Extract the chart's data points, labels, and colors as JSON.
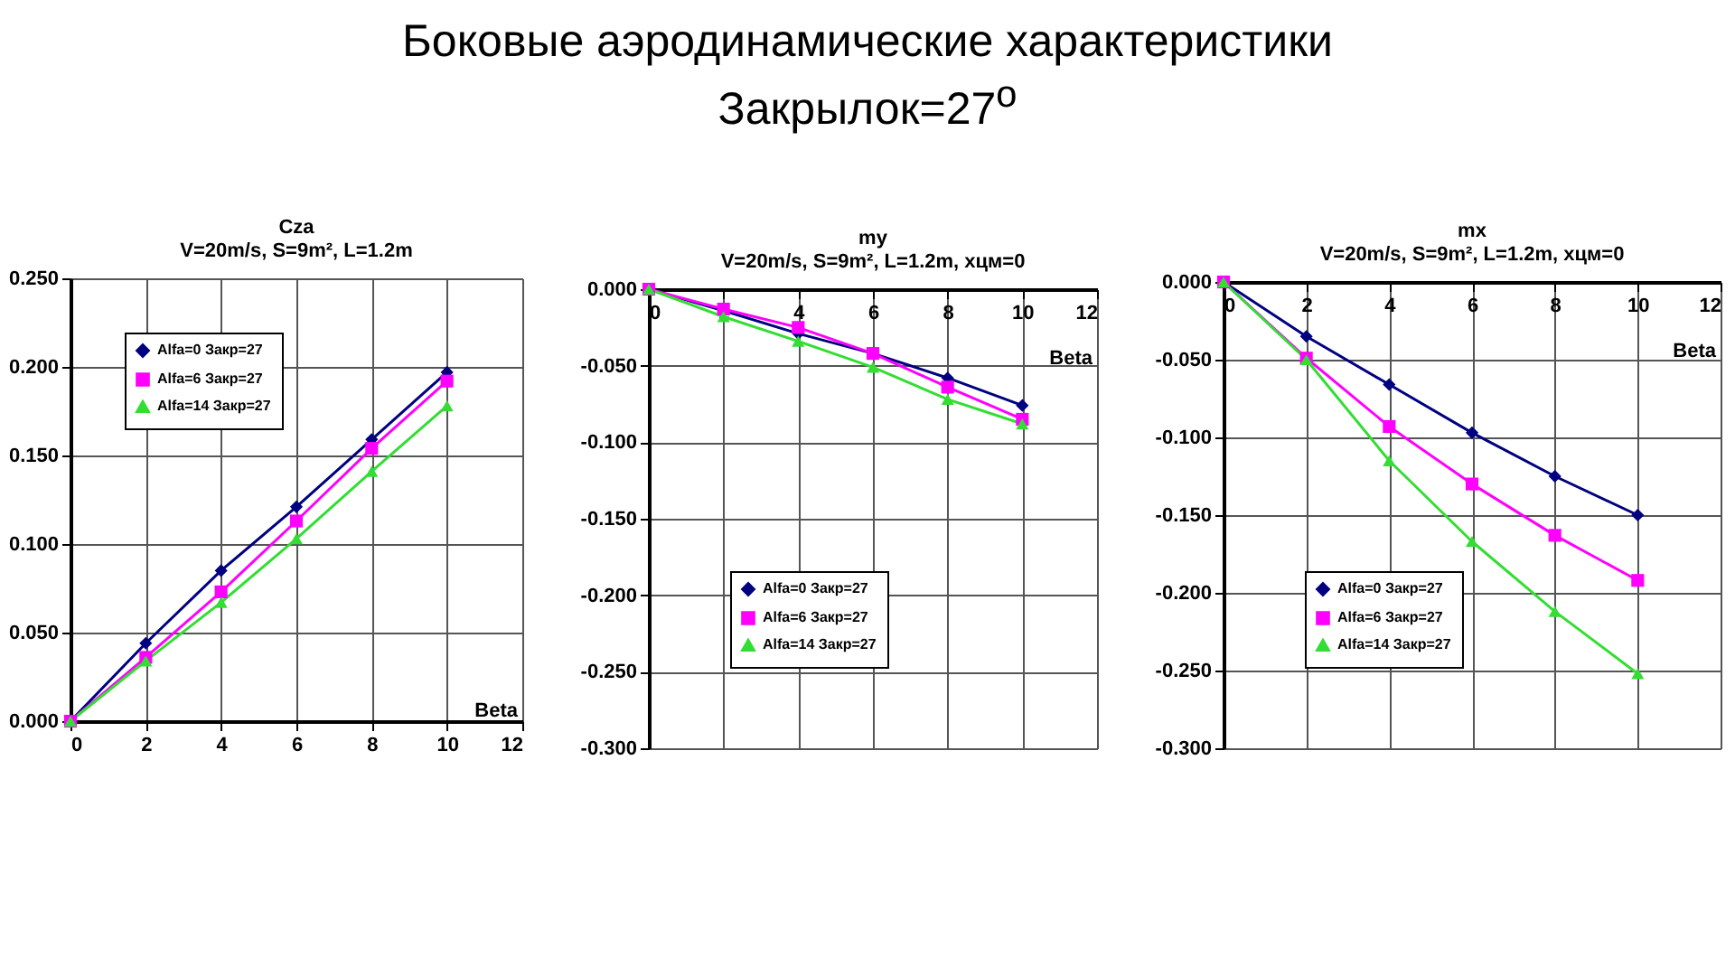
{
  "chart_data": [
    {
      "type": "line",
      "title": "Cza",
      "subtitle": "V=20m/s, S=9m², L=1.2m",
      "xlabel": "Beta",
      "annotations": [
        "Боковые аэродинамические характеристики",
        "Закрылок=27$^{o}$"
      ],
      "x": [
        0,
        2,
        4,
        6,
        8,
        10
      ],
      "xlim": [
        0,
        12
      ],
      "xticks": [
        0,
        2,
        4,
        6,
        8,
        10,
        12
      ],
      "ylim": [
        0,
        0.25
      ],
      "yticks": [
        {
          "value": 0,
          "label": "0.000"
        },
        {
          "value": 0.05,
          "label": "0.050"
        },
        {
          "value": 0.1,
          "label": "0.100"
        },
        {
          "value": 0.15,
          "label": "0.150"
        },
        {
          "value": 0.2,
          "label": "0.200"
        },
        {
          "value": 0.25,
          "label": "0.250"
        }
      ],
      "grid": true,
      "legend": "top left",
      "series": [
        {
          "name": "Alfa=0 Закр=27",
          "color": "#000080",
          "marker": "diamond",
          "values": [
            0,
            0.044,
            0.085,
            0.121,
            0.159,
            0.197
          ]
        },
        {
          "name": "Alfa=6 Закр=27",
          "color": "#ff00ff",
          "marker": "square",
          "values": [
            0,
            0.036,
            0.073,
            0.113,
            0.154,
            0.192
          ]
        },
        {
          "name": "Alfa=14 Закр=27",
          "color": "#33dd33",
          "marker": "triangle",
          "values": [
            0,
            0.034,
            0.067,
            0.103,
            0.141,
            0.178
          ]
        }
      ]
    },
    {
      "type": "line",
      "title": "my",
      "subtitle": "V=20m/s, S=9m², L=1.2m, хцм=0",
      "xlabel": "Beta",
      "x": [
        0,
        2,
        4,
        6,
        8,
        10
      ],
      "xlim": [
        0,
        12
      ],
      "xticks": [
        0,
        2,
        4,
        6,
        8,
        10,
        12
      ],
      "ylim": [
        -0.3,
        0
      ],
      "yticks": [
        {
          "value": -0.3,
          "label": "-0.300"
        },
        {
          "value": -0.25,
          "label": "-0.250"
        },
        {
          "value": -0.2,
          "label": "-0.200"
        },
        {
          "value": -0.15,
          "label": "-0.150"
        },
        {
          "value": -0.1,
          "label": "-0.100"
        },
        {
          "value": -0.05,
          "label": "-0.050"
        },
        {
          "value": 0,
          "label": "0.000"
        }
      ],
      "grid": true,
      "legend": "bottom left",
      "series": [
        {
          "name": "Alfa=0 Закр=27",
          "color": "#000080",
          "marker": "diamond",
          "values": [
            0,
            -0.014,
            -0.029,
            -0.042,
            -0.058,
            -0.076
          ]
        },
        {
          "name": "Alfa=6 Закр=27",
          "color": "#ff00ff",
          "marker": "square",
          "values": [
            0,
            -0.013,
            -0.025,
            -0.042,
            -0.064,
            -0.085
          ]
        },
        {
          "name": "Alfa=14 Закр=27",
          "color": "#33dd33",
          "marker": "triangle",
          "values": [
            0,
            -0.018,
            -0.034,
            -0.051,
            -0.072,
            -0.088
          ]
        }
      ]
    },
    {
      "type": "line",
      "title": "mx",
      "subtitle": "V=20m/s, S=9m², L=1.2m, хцм=0",
      "xlabel": "Beta",
      "x": [
        0,
        2,
        4,
        6,
        8,
        10
      ],
      "xlim": [
        0,
        12
      ],
      "xticks": [
        0,
        2,
        4,
        6,
        8,
        10,
        12
      ],
      "ylim": [
        -0.3,
        0
      ],
      "yticks": [
        {
          "value": -0.3,
          "label": "-0.300"
        },
        {
          "value": -0.25,
          "label": "-0.250"
        },
        {
          "value": -0.2,
          "label": "-0.200"
        },
        {
          "value": -0.15,
          "label": "-0.150"
        },
        {
          "value": -0.1,
          "label": "-0.100"
        },
        {
          "value": -0.05,
          "label": "-0.050"
        },
        {
          "value": 0,
          "label": "0.000"
        }
      ],
      "grid": true,
      "legend": "bottom left",
      "series": [
        {
          "name": "Alfa=0 Закр=27",
          "color": "#000080",
          "marker": "diamond",
          "values": [
            0,
            -0.035,
            -0.066,
            -0.097,
            -0.125,
            -0.15
          ]
        },
        {
          "name": "Alfa=6 Закр=27",
          "color": "#ff00ff",
          "marker": "square",
          "values": [
            0,
            -0.049,
            -0.093,
            -0.13,
            -0.163,
            -0.192
          ]
        },
        {
          "name": "Alfa=14 Закр=27",
          "color": "#33dd33",
          "marker": "triangle",
          "values": [
            0,
            -0.05,
            -0.115,
            -0.167,
            -0.212,
            -0.252
          ]
        }
      ]
    }
  ]
}
